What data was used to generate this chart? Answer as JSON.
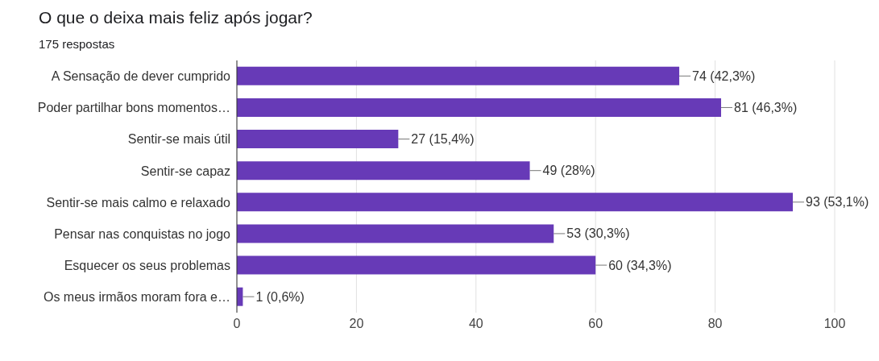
{
  "chart_data": {
    "type": "bar",
    "orientation": "horizontal",
    "title": "O que o deixa mais feliz após jogar?",
    "subtitle": "175 respostas",
    "categories": [
      "A Sensação de dever cumprido",
      "Poder partilhar bons momentos…",
      "Sentir-se mais útil",
      "Sentir-se capaz",
      "Sentir-se mais calmo e relaxado",
      "Pensar nas conquistas no jogo",
      "Esquecer os seus problemas",
      "Os meus irmãos moram fora e…"
    ],
    "values": [
      74,
      81,
      27,
      49,
      93,
      53,
      60,
      1
    ],
    "value_labels": [
      "74 (42,3%)",
      "81 (46,3%)",
      "27 (15,4%)",
      "49 (28%)",
      "93 (53,1%)",
      "53 (30,3%)",
      "60 (34,3%)",
      "1 (0,6%)"
    ],
    "color": "#673ab7",
    "xlim": [
      0,
      100
    ],
    "xticks": [
      0,
      20,
      40,
      60,
      80,
      100
    ],
    "grid": "x"
  }
}
